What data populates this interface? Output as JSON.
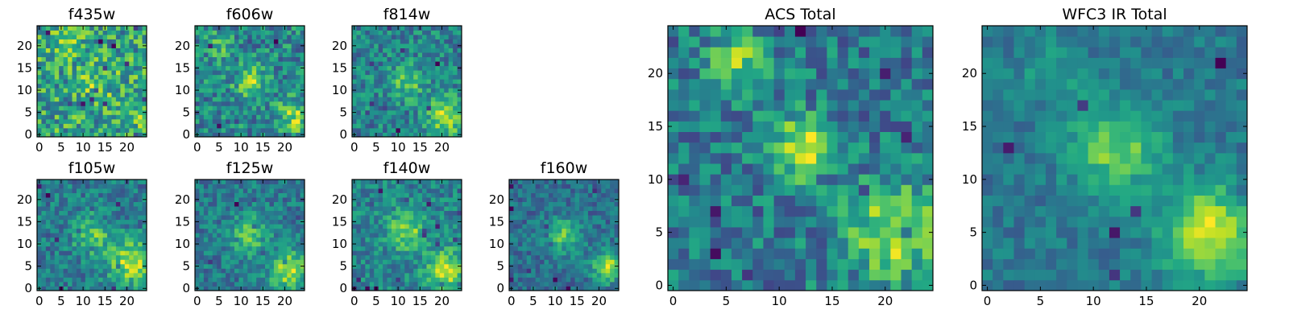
{
  "chart_data": [
    {
      "type": "heatmap",
      "title": "f435w",
      "x_ticks": [
        "0",
        "5",
        "10",
        "15",
        "20"
      ],
      "y_ticks": [
        "0",
        "5",
        "10",
        "15",
        "20"
      ],
      "xlim": [
        -0.5,
        24.5
      ],
      "ylim": [
        -0.5,
        24.5
      ],
      "grid": false,
      "colormap": "viridis",
      "pixels": 25,
      "noise": 0.85,
      "sources": [
        {
          "x": 13,
          "y": 12,
          "sigma": 3.0,
          "amp": 0.25
        },
        {
          "x": 6,
          "y": 20,
          "sigma": 2.0,
          "amp": 0.3
        },
        {
          "x": 21,
          "y": 5,
          "sigma": 3.0,
          "amp": 0.2
        }
      ],
      "seed": 11
    },
    {
      "type": "heatmap",
      "title": "f606w",
      "x_ticks": [
        "0",
        "5",
        "10",
        "15",
        "20"
      ],
      "y_ticks": [
        "0",
        "5",
        "10",
        "15",
        "20"
      ],
      "xlim": [
        -0.5,
        24.5
      ],
      "ylim": [
        -0.5,
        24.5
      ],
      "grid": false,
      "colormap": "viridis",
      "pixels": 25,
      "noise": 0.7,
      "sources": [
        {
          "x": 12,
          "y": 12,
          "sigma": 2.5,
          "amp": 0.5
        },
        {
          "x": 22,
          "y": 4,
          "sigma": 2.5,
          "amp": 0.55
        },
        {
          "x": 5,
          "y": 20,
          "sigma": 2.0,
          "amp": 0.35
        }
      ],
      "seed": 22
    },
    {
      "type": "heatmap",
      "title": "f814w",
      "x_ticks": [
        "0",
        "5",
        "10",
        "15",
        "20"
      ],
      "y_ticks": [
        "0",
        "5",
        "10",
        "15",
        "20"
      ],
      "xlim": [
        -0.5,
        24.5
      ],
      "ylim": [
        -0.5,
        24.5
      ],
      "grid": false,
      "colormap": "viridis",
      "pixels": 25,
      "noise": 0.7,
      "sources": [
        {
          "x": 12,
          "y": 12,
          "sigma": 2.5,
          "amp": 0.55
        },
        {
          "x": 21,
          "y": 4,
          "sigma": 3.0,
          "amp": 0.75
        }
      ],
      "seed": 33
    },
    {
      "type": "heatmap",
      "title": "f105w",
      "x_ticks": [
        "0",
        "5",
        "10",
        "15",
        "20"
      ],
      "y_ticks": [
        "0",
        "5",
        "10",
        "15",
        "20"
      ],
      "xlim": [
        -0.5,
        24.5
      ],
      "ylim": [
        -0.5,
        24.5
      ],
      "grid": false,
      "colormap": "viridis",
      "pixels": 25,
      "noise": 0.55,
      "sources": [
        {
          "x": 12,
          "y": 12,
          "sigma": 3.0,
          "amp": 0.5
        },
        {
          "x": 21,
          "y": 6,
          "sigma": 3.5,
          "amp": 0.75
        }
      ],
      "seed": 44
    },
    {
      "type": "heatmap",
      "title": "f125w",
      "x_ticks": [
        "0",
        "5",
        "10",
        "15",
        "20"
      ],
      "y_ticks": [
        "0",
        "5",
        "10",
        "15",
        "20"
      ],
      "xlim": [
        -0.5,
        24.5
      ],
      "ylim": [
        -0.5,
        24.5
      ],
      "grid": false,
      "colormap": "viridis",
      "pixels": 25,
      "noise": 0.55,
      "sources": [
        {
          "x": 12,
          "y": 12,
          "sigma": 3.0,
          "amp": 0.55
        },
        {
          "x": 21,
          "y": 4,
          "sigma": 3.0,
          "amp": 0.8
        }
      ],
      "seed": 55
    },
    {
      "type": "heatmap",
      "title": "f140w",
      "x_ticks": [
        "0",
        "5",
        "10",
        "15",
        "20"
      ],
      "y_ticks": [
        "0",
        "5",
        "10",
        "15",
        "20"
      ],
      "xlim": [
        -0.5,
        24.5
      ],
      "ylim": [
        -0.5,
        24.5
      ],
      "grid": false,
      "colormap": "viridis",
      "pixels": 25,
      "noise": 0.55,
      "sources": [
        {
          "x": 12,
          "y": 13,
          "sigma": 3.0,
          "amp": 0.6
        },
        {
          "x": 21,
          "y": 4,
          "sigma": 3.0,
          "amp": 0.8
        }
      ],
      "seed": 66
    },
    {
      "type": "heatmap",
      "title": "f160w",
      "x_ticks": [
        "0",
        "5",
        "10",
        "15",
        "20"
      ],
      "y_ticks": [
        "0",
        "5",
        "10",
        "15",
        "20"
      ],
      "xlim": [
        -0.5,
        24.5
      ],
      "ylim": [
        -0.5,
        24.5
      ],
      "grid": false,
      "colormap": "viridis",
      "pixels": 25,
      "noise": 0.5,
      "sources": [
        {
          "x": 12,
          "y": 12,
          "sigma": 3.0,
          "amp": 0.6
        },
        {
          "x": 22,
          "y": 5,
          "sigma": 2.5,
          "amp": 0.85
        }
      ],
      "seed": 77
    },
    {
      "type": "heatmap",
      "title": "ACS Total",
      "x_ticks": [
        "0",
        "5",
        "10",
        "15",
        "20"
      ],
      "y_ticks": [
        "0",
        "5",
        "10",
        "15",
        "20"
      ],
      "xlim": [
        -0.5,
        24.5
      ],
      "ylim": [
        -0.5,
        24.5
      ],
      "grid": false,
      "colormap": "viridis",
      "pixels": 25,
      "noise": 0.6,
      "sources": [
        {
          "x": 12,
          "y": 13,
          "sigma": 2.0,
          "amp": 0.75
        },
        {
          "x": 21,
          "y": 5,
          "sigma": 3.0,
          "amp": 0.7
        },
        {
          "x": 6,
          "y": 21,
          "sigma": 2.0,
          "amp": 0.55
        }
      ],
      "seed": 88
    },
    {
      "type": "heatmap",
      "title": "WFC3 IR Total",
      "x_ticks": [
        "0",
        "5",
        "10",
        "15",
        "20"
      ],
      "y_ticks": [
        "0",
        "5",
        "10",
        "15",
        "20"
      ],
      "xlim": [
        -0.5,
        24.5
      ],
      "ylim": [
        -0.5,
        24.5
      ],
      "grid": false,
      "colormap": "viridis",
      "pixels": 25,
      "noise": 0.35,
      "sources": [
        {
          "x": 12,
          "y": 13,
          "sigma": 3.0,
          "amp": 0.6
        },
        {
          "x": 21,
          "y": 5,
          "sigma": 3.0,
          "amp": 0.85
        },
        {
          "x": 6,
          "y": 20,
          "sigma": 2.0,
          "amp": 0.25
        }
      ],
      "seed": 99
    }
  ]
}
